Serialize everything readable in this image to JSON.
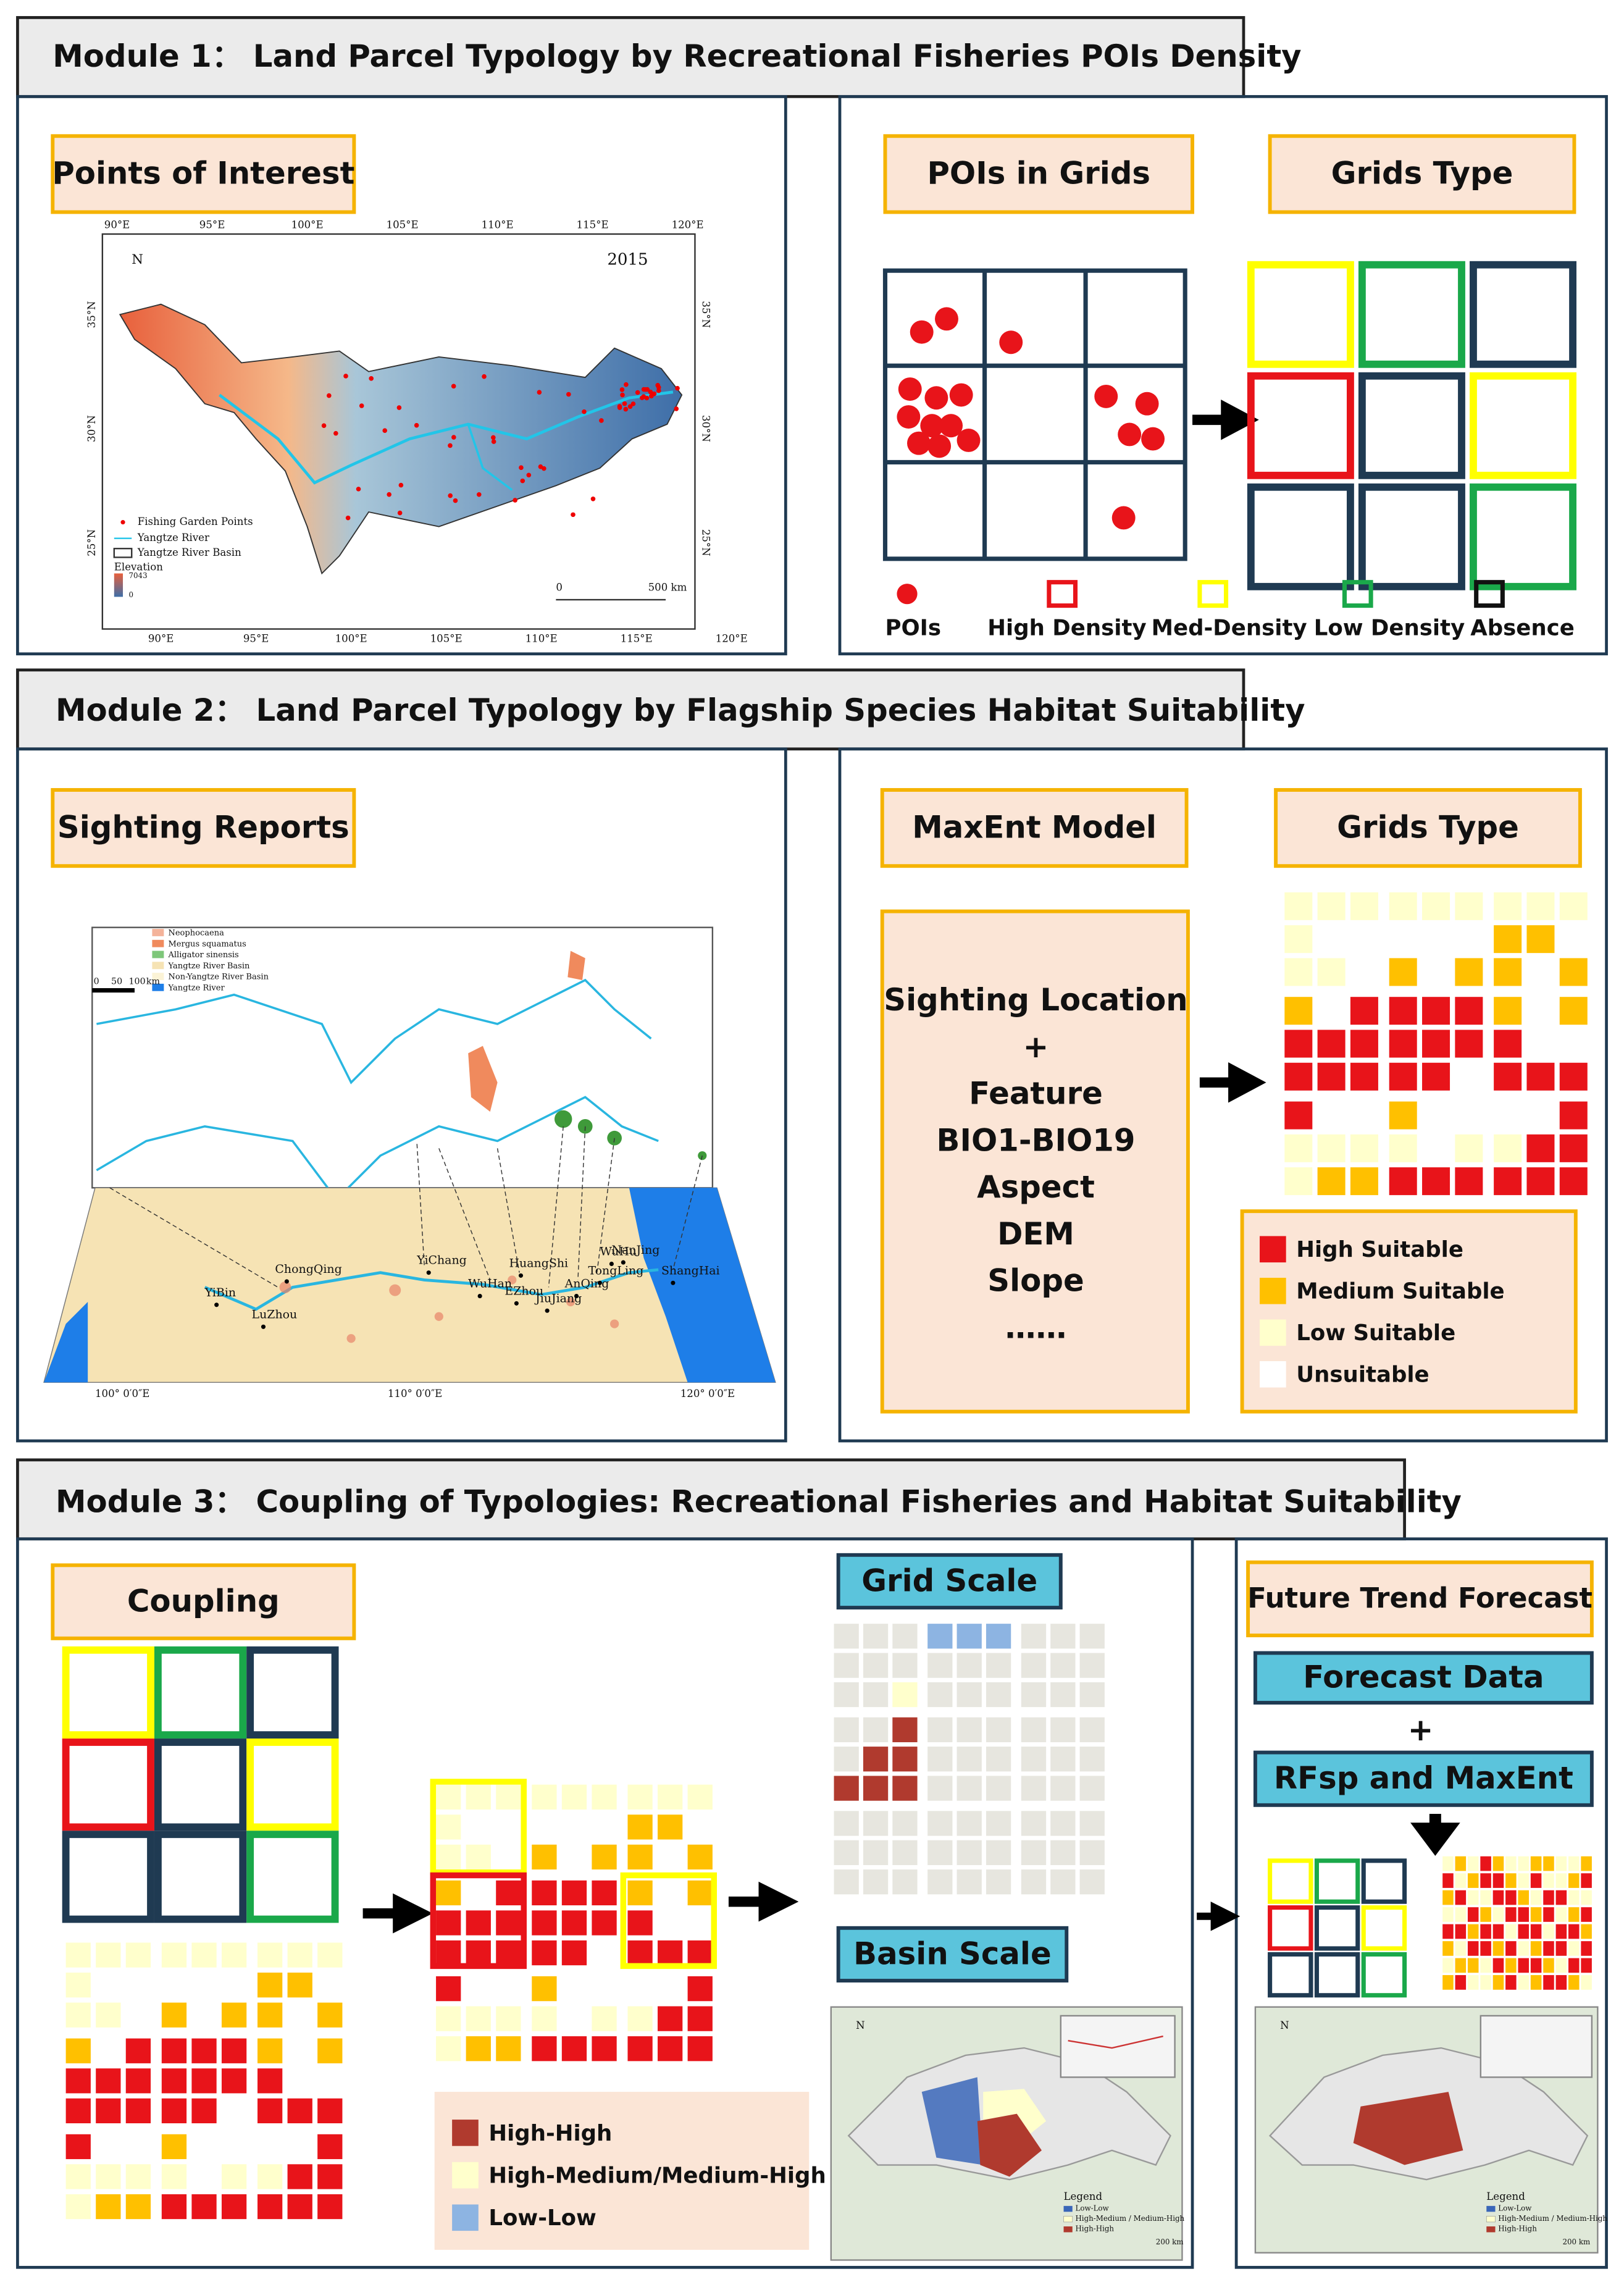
{
  "module1": {
    "title": "Module 1：  Land Parcel Typology by Recreational Fisheries POIs Density",
    "poi_map": {
      "title": "Points of Interest",
      "year": "2015",
      "lon_labels": [
        "90°E",
        "95°E",
        "100°E",
        "105°E",
        "110°E",
        "115°E",
        "120°E"
      ],
      "lat_labels": [
        "35°N",
        "30°N",
        "25°N"
      ],
      "legend": [
        "Fishing Garden Points",
        "Yangtze River",
        "Yangtze River Basin"
      ],
      "elevation": {
        "title": "Elevation",
        "high": "7043",
        "low": "0"
      },
      "scale": [
        "0",
        "500 km"
      ]
    },
    "grids": {
      "pois_title": "POIs in Grids",
      "type_title": "Grids Type",
      "legend": [
        "POIs",
        "High Density",
        "Med-Density",
        "Low Density",
        "Absence"
      ]
    }
  },
  "module2": {
    "title": "Module 2：  Land Parcel Typology by Flagship Species Habitat Suitability",
    "sighting": {
      "title": "Sighting Reports",
      "legend": [
        "Neophocaena",
        "Mergus squamatus",
        "Alligator sinensis",
        "Yangtze River Basin",
        "Non-Yangtze River Basin",
        "Yangtze River"
      ],
      "scale": [
        "0",
        "50",
        "100",
        "km"
      ],
      "cities": [
        "YiBin",
        "LuZhou",
        "ChongQing",
        "YiChang",
        "WuHan",
        "EZhou",
        "HuangShi",
        "JiuJiang",
        "AnQing",
        "TongLing",
        "WuHu",
        "NanJing",
        "ShangHai"
      ],
      "lon_labels": [
        "100° 0′0″E",
        "110° 0′0″E",
        "120° 0′0″E"
      ]
    },
    "maxent": {
      "title": "MaxEnt Model",
      "lines": [
        "Sighting Location",
        "+",
        "Feature",
        "BIO1-BIO19",
        "Aspect",
        "DEM",
        "Slope",
        "……"
      ]
    },
    "grids_type": {
      "title": "Grids Type",
      "legend": [
        "High Suitable",
        "Medium Suitable",
        "Low Suitable",
        "Unsuitable"
      ]
    }
  },
  "module3": {
    "title": "Module 3：  Coupling of Typologies: Recreational Fisheries and Habitat Suitability",
    "coupling": {
      "title": "Coupling",
      "legend": [
        "High-High",
        "High-Medium/Medium-High",
        "Low-Low"
      ]
    },
    "grid_scale": "Grid Scale",
    "basin_scale": {
      "title": "Basin Scale",
      "legend": {
        "title": "Legend",
        "items": [
          "Low-Low",
          "High-Medium / Medium-High",
          "High-High"
        ]
      },
      "scale": "200 km"
    },
    "forecast": {
      "title": "Future Trend Forecast",
      "data": "Forecast Data",
      "plus": "+",
      "model": "RFsp and MaxEnt"
    }
  }
}
